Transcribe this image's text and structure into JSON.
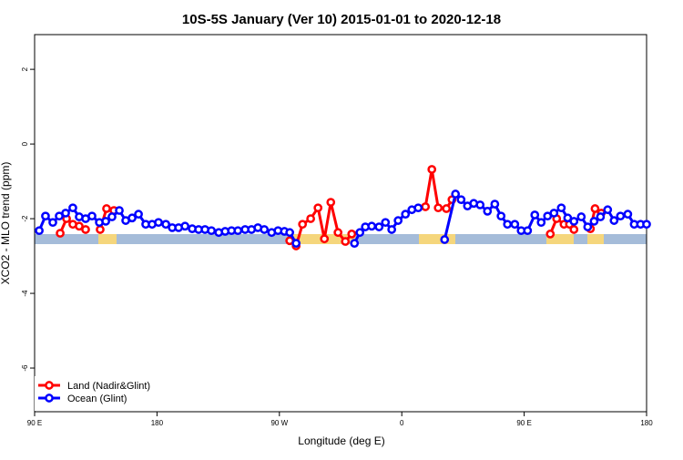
{
  "chart_data": {
    "type": "line",
    "title": "10S-5S January (Ver 10)   2015-01-01 to 2020-12-18",
    "x_label": "Longitude (deg E)",
    "y_label": "XCO2 - MLO trend (ppm)",
    "xlim": [
      90,
      540
    ],
    "ylim": [
      -7.17,
      2.93
    ],
    "xticks": [
      {
        "value": 90,
        "label": "90 E"
      },
      180,
      {
        "value": 270,
        "label": "90 W"
      },
      {
        "value": 360,
        "label": "0"
      },
      {
        "value": 450,
        "label": "90 E"
      },
      {
        "value": 540,
        "label": "180"
      }
    ],
    "yticks": [
      2,
      0,
      -2,
      -4,
      -6
    ],
    "legend": "bottom-left",
    "series": [
      {
        "name": "Land (Nadir&Glint)",
        "color": "#ff0000",
        "x": [
          108.8,
          113.5,
          118.1,
          122.8,
          127.5,
          null,
          138.2,
          142.9,
          148.3,
          null,
          277.6,
          282.3,
          287.0,
          293.0,
          298.4,
          303.1,
          307.8,
          313.1,
          318.5,
          323.2,
          null,
          377.4,
          382.1,
          386.8,
          392.8,
          396.9,
          null,
          469.2,
          473.9,
          479.3,
          483.3,
          486.6,
          null,
          498.7,
          502.1,
          506.7
        ],
        "values": [
          -2.39,
          -2.0,
          -2.15,
          -2.2,
          -2.29,
          null,
          -2.29,
          -1.73,
          -1.78,
          null,
          -2.59,
          -2.73,
          -2.15,
          -2.0,
          -1.71,
          -2.54,
          -1.56,
          -2.37,
          -2.61,
          -2.41,
          null,
          -1.68,
          -0.68,
          -1.71,
          -1.73,
          -1.49,
          null,
          -2.41,
          -2.0,
          -2.15,
          -2.15,
          -2.29,
          null,
          -2.27,
          -1.73,
          -1.85
        ]
      },
      {
        "name": "Ocean (Glint)",
        "color": "#0000ff",
        "x": [
          93.4,
          98.0,
          103.4,
          108.1,
          112.8,
          118.1,
          122.8,
          127.5,
          132.2,
          137.6,
          142.3,
          146.9,
          152.3,
          157.0,
          161.7,
          166.4,
          171.7,
          176.4,
          181.1,
          186.5,
          191.2,
          195.9,
          200.6,
          205.9,
          210.6,
          215.3,
          220.0,
          225.4,
          230.1,
          234.8,
          239.5,
          244.8,
          249.5,
          254.2,
          258.9,
          264.3,
          269.0,
          273.7,
          277.6,
          282.3,
          null,
          325.2,
          329.2,
          333.2,
          337.9,
          343.3,
          348.0,
          352.6,
          357.3,
          362.7,
          367.4,
          372.1,
          null,
          391.5,
          399.5,
          403.6,
          408.3,
          412.9,
          417.6,
          423.0,
          428.4,
          433.0,
          437.7,
          443.1,
          447.8,
          452.5,
          457.8,
          462.5,
          467.2,
          471.9,
          477.3,
          482.0,
          486.6,
          492.0,
          496.7,
          501.4,
          506.1,
          511.4,
          516.1,
          520.8,
          526.2,
          530.9,
          535.6,
          540
        ],
        "values": [
          -2.32,
          -1.93,
          -2.1,
          -1.93,
          -1.85,
          -1.71,
          -1.95,
          -2.0,
          -1.93,
          -2.1,
          -2.07,
          -1.95,
          -1.78,
          -2.05,
          -1.98,
          -1.88,
          -2.15,
          -2.15,
          -2.1,
          -2.15,
          -2.24,
          -2.24,
          -2.2,
          -2.27,
          -2.29,
          -2.29,
          -2.32,
          -2.37,
          -2.34,
          -2.32,
          -2.32,
          -2.29,
          -2.29,
          -2.24,
          -2.29,
          -2.37,
          -2.32,
          -2.34,
          -2.37,
          -2.66,
          null,
          -2.66,
          -2.37,
          -2.22,
          -2.2,
          -2.22,
          -2.1,
          -2.29,
          -2.05,
          -1.88,
          -1.76,
          -1.71,
          null,
          -2.56,
          -1.34,
          -1.49,
          -1.66,
          -1.59,
          -1.63,
          -1.8,
          -1.61,
          -1.93,
          -2.15,
          -2.15,
          -2.32,
          -2.32,
          -1.9,
          -2.1,
          -1.93,
          -1.85,
          -1.71,
          -1.98,
          -2.07,
          -1.95,
          -2.22,
          -2.07,
          -1.95,
          -1.76,
          -2.05,
          -1.93,
          -1.88,
          -2.15,
          -2.15,
          -2.15
        ]
      }
    ]
  }
}
